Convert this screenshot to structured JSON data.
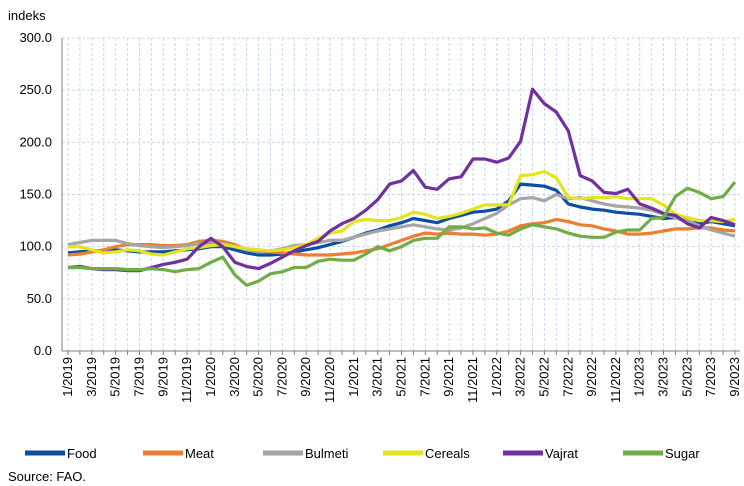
{
  "chart_data": {
    "type": "line",
    "y_label": "indeks",
    "source": "Source: FAO.",
    "categories": [
      "1/2019",
      null,
      "3/2019",
      null,
      "5/2019",
      null,
      "7/2019",
      null,
      "9/2019",
      null,
      "11/2019",
      null,
      "1/2020",
      null,
      "3/2020",
      null,
      "5/2020",
      null,
      "7/2020",
      null,
      "9/2020",
      null,
      "11/2020",
      null,
      "1/2021",
      null,
      "3/2021",
      null,
      "5/2021",
      null,
      "7/2021",
      null,
      "9/2021",
      null,
      "11/2021",
      null,
      "1/2022",
      null,
      "3/2022",
      null,
      "5/2022",
      null,
      "7/2022",
      null,
      "9/2022",
      null,
      "11/2022",
      null,
      "1/2023",
      null,
      "3/2023",
      null,
      "5/2023",
      null,
      "7/2023",
      null,
      "9/2023"
    ],
    "series": [
      {
        "name": "Food",
        "color": "#0b4ea2",
        "values": [
          94,
          95,
          96,
          96,
          97,
          96,
          95,
          95,
          95,
          96,
          97,
          98,
          100,
          100,
          97,
          94,
          92,
          92,
          93,
          95,
          97,
          99,
          102,
          105,
          109,
          113,
          116,
          120,
          123,
          127,
          125,
          123,
          127,
          130,
          133,
          134,
          136,
          144,
          160,
          159,
          158,
          154,
          141,
          138,
          136,
          135,
          133,
          132,
          131,
          129,
          127,
          128,
          124,
          122,
          124,
          122,
          120
        ]
      },
      {
        "name": "Meat",
        "color": "#ed7d31",
        "values": [
          92,
          93,
          95,
          97,
          100,
          102,
          102,
          102,
          101,
          101,
          102,
          105,
          106,
          105,
          102,
          97,
          95,
          95,
          94,
          93,
          92,
          92,
          92,
          93,
          94,
          96,
          98,
          102,
          106,
          110,
          113,
          112,
          113,
          112,
          112,
          111,
          112,
          115,
          120,
          122,
          123,
          126,
          124,
          121,
          120,
          117,
          115,
          112,
          112,
          113,
          115,
          117,
          117,
          118,
          118,
          116,
          115
        ]
      },
      {
        "name": "Bulmeti",
        "color": "#a5a5a5",
        "values": [
          102,
          104,
          106,
          106,
          106,
          103,
          101,
          100,
          99,
          100,
          101,
          103,
          103,
          103,
          100,
          97,
          95,
          96,
          98,
          101,
          102,
          104,
          106,
          106,
          109,
          112,
          115,
          117,
          119,
          121,
          119,
          117,
          116,
          118,
          122,
          127,
          132,
          140,
          146,
          147,
          144,
          150,
          146,
          147,
          144,
          141,
          139,
          138,
          137,
          135,
          131,
          128,
          125,
          120,
          116,
          113,
          110
        ]
      },
      {
        "name": "Cereals",
        "color": "#e4e41a",
        "values": [
          100,
          100,
          97,
          94,
          95,
          97,
          96,
          93,
          92,
          95,
          98,
          99,
          101,
          102,
          100,
          98,
          97,
          96,
          97,
          99,
          102,
          108,
          113,
          115,
          124,
          126,
          125,
          125,
          128,
          133,
          131,
          127,
          129,
          132,
          136,
          140,
          140,
          140,
          168,
          169,
          172,
          166,
          147,
          146,
          147,
          147,
          148,
          146,
          146,
          146,
          140,
          131,
          128,
          125,
          125,
          124,
          126
        ]
      },
      {
        "name": "Vajrat",
        "color": "#7030a0",
        "values": [
          80,
          81,
          79,
          78,
          78,
          77,
          77,
          80,
          83,
          85,
          88,
          100,
          108,
          100,
          85,
          81,
          79,
          84,
          90,
          96,
          101,
          105,
          115,
          122,
          127,
          135,
          145,
          160,
          163,
          173,
          157,
          155,
          165,
          167,
          184,
          184,
          181,
          185,
          201,
          251,
          237,
          229,
          211,
          168,
          163,
          152,
          151,
          155,
          141,
          137,
          132,
          130,
          122,
          118,
          128,
          125,
          121
        ]
      },
      {
        "name": "Sugar",
        "color": "#70ad47",
        "values": [
          80,
          80,
          79,
          79,
          79,
          78,
          78,
          79,
          78,
          76,
          78,
          79,
          85,
          90,
          73,
          63,
          67,
          74,
          76,
          80,
          80,
          86,
          88,
          87,
          87,
          93,
          100,
          96,
          100,
          106,
          108,
          108,
          119,
          119,
          117,
          118,
          113,
          111,
          117,
          121,
          119,
          117,
          113,
          110,
          109,
          109,
          114,
          116,
          116,
          127,
          128,
          148,
          156,
          152,
          146,
          148,
          162
        ]
      }
    ],
    "ylim": [
      0,
      300
    ],
    "yticks": [
      {
        "value": 0,
        "label": "0.0"
      },
      {
        "value": 50,
        "label": "50.0"
      },
      {
        "value": 100,
        "label": "100.0"
      },
      {
        "value": 150,
        "label": "150.0"
      },
      {
        "value": 200,
        "label": "200.0"
      },
      {
        "value": 250,
        "label": "250.0"
      },
      {
        "value": 300,
        "label": "300.0"
      }
    ],
    "grid": true,
    "legend": "bottom"
  }
}
